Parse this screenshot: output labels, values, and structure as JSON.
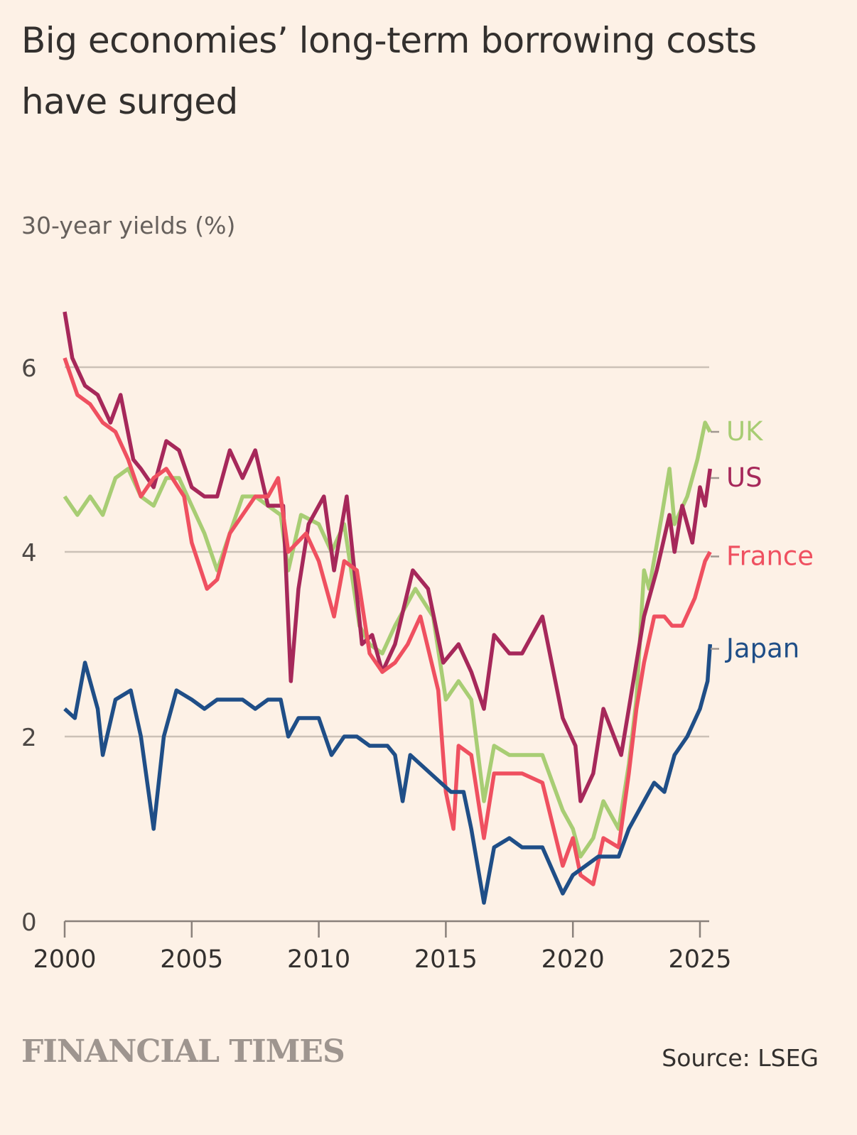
{
  "chart_data": {
    "type": "line",
    "title": "Big economies’ long-term borrowing costs have surged",
    "subtitle": "30-year yields (%)",
    "xlim": [
      2000,
      2025.5
    ],
    "ylim": [
      0,
      6.8
    ],
    "x_ticks": [
      2000,
      2005,
      2010,
      2015,
      2020,
      2025
    ],
    "x_tick_labels": [
      "2000",
      "2005",
      "2010",
      "2015",
      "2020",
      "2025"
    ],
    "y_ticks": [
      0,
      2,
      4,
      6
    ],
    "y_tick_labels": [
      "0",
      "2",
      "4",
      "6"
    ],
    "grid": true,
    "legend": "direct labels at line ends (right)",
    "series": [
      {
        "name": "UK",
        "color": "#a8cd74",
        "points": [
          [
            2000,
            4.6
          ],
          [
            2000.5,
            4.4
          ],
          [
            2001,
            4.6
          ],
          [
            2001.5,
            4.4
          ],
          [
            2002,
            4.8
          ],
          [
            2002.5,
            4.9
          ],
          [
            2003,
            4.6
          ],
          [
            2003.5,
            4.5
          ],
          [
            2004,
            4.8
          ],
          [
            2004.5,
            4.8
          ],
          [
            2005,
            4.5
          ],
          [
            2005.5,
            4.2
          ],
          [
            2006,
            3.8
          ],
          [
            2006.5,
            4.2
          ],
          [
            2007,
            4.6
          ],
          [
            2007.5,
            4.6
          ],
          [
            2008,
            4.5
          ],
          [
            2008.5,
            4.4
          ],
          [
            2008.8,
            3.8
          ],
          [
            2009.3,
            4.4
          ],
          [
            2010,
            4.3
          ],
          [
            2010.5,
            4.0
          ],
          [
            2011,
            4.3
          ],
          [
            2011.6,
            3.2
          ],
          [
            2012,
            3.0
          ],
          [
            2012.5,
            2.9
          ],
          [
            2013,
            3.2
          ],
          [
            2013.8,
            3.6
          ],
          [
            2014.5,
            3.3
          ],
          [
            2015,
            2.4
          ],
          [
            2015.5,
            2.6
          ],
          [
            2016,
            2.4
          ],
          [
            2016.5,
            1.3
          ],
          [
            2016.9,
            1.9
          ],
          [
            2017.5,
            1.8
          ],
          [
            2018,
            1.8
          ],
          [
            2018.8,
            1.8
          ],
          [
            2019.6,
            1.2
          ],
          [
            2020,
            1.0
          ],
          [
            2020.3,
            0.7
          ],
          [
            2020.8,
            0.9
          ],
          [
            2021.2,
            1.3
          ],
          [
            2021.8,
            1.0
          ],
          [
            2022.2,
            1.7
          ],
          [
            2022.5,
            2.4
          ],
          [
            2022.8,
            3.8
          ],
          [
            2023,
            3.6
          ],
          [
            2023.5,
            4.4
          ],
          [
            2023.8,
            4.9
          ],
          [
            2024,
            4.3
          ],
          [
            2024.5,
            4.6
          ],
          [
            2024.9,
            5.0
          ],
          [
            2025.2,
            5.4
          ],
          [
            2025.4,
            5.3
          ]
        ]
      },
      {
        "name": "US",
        "color": "#a6285a",
        "points": [
          [
            2000,
            6.6
          ],
          [
            2000.3,
            6.1
          ],
          [
            2000.8,
            5.8
          ],
          [
            2001.3,
            5.7
          ],
          [
            2001.8,
            5.4
          ],
          [
            2002.2,
            5.7
          ],
          [
            2002.7,
            5.0
          ],
          [
            2003,
            4.9
          ],
          [
            2003.5,
            4.7
          ],
          [
            2004,
            5.2
          ],
          [
            2004.5,
            5.1
          ],
          [
            2005,
            4.7
          ],
          [
            2005.5,
            4.6
          ],
          [
            2006,
            4.6
          ],
          [
            2006.5,
            5.1
          ],
          [
            2007,
            4.8
          ],
          [
            2007.5,
            5.1
          ],
          [
            2008,
            4.5
          ],
          [
            2008.6,
            4.5
          ],
          [
            2008.9,
            2.6
          ],
          [
            2009.2,
            3.6
          ],
          [
            2009.6,
            4.3
          ],
          [
            2010.2,
            4.6
          ],
          [
            2010.6,
            3.8
          ],
          [
            2011.1,
            4.6
          ],
          [
            2011.7,
            3.0
          ],
          [
            2012.1,
            3.1
          ],
          [
            2012.5,
            2.7
          ],
          [
            2013,
            3.0
          ],
          [
            2013.7,
            3.8
          ],
          [
            2014.3,
            3.6
          ],
          [
            2014.9,
            2.8
          ],
          [
            2015.5,
            3.0
          ],
          [
            2016,
            2.7
          ],
          [
            2016.5,
            2.3
          ],
          [
            2016.9,
            3.1
          ],
          [
            2017.5,
            2.9
          ],
          [
            2018,
            2.9
          ],
          [
            2018.8,
            3.3
          ],
          [
            2019.6,
            2.2
          ],
          [
            2020.1,
            1.9
          ],
          [
            2020.3,
            1.3
          ],
          [
            2020.8,
            1.6
          ],
          [
            2021.2,
            2.3
          ],
          [
            2021.9,
            1.8
          ],
          [
            2022.2,
            2.3
          ],
          [
            2022.8,
            3.3
          ],
          [
            2023.3,
            3.8
          ],
          [
            2023.8,
            4.4
          ],
          [
            2024,
            4.0
          ],
          [
            2024.3,
            4.5
          ],
          [
            2024.7,
            4.1
          ],
          [
            2025,
            4.7
          ],
          [
            2025.2,
            4.5
          ],
          [
            2025.4,
            4.9
          ]
        ]
      },
      {
        "name": "France",
        "color": "#ef5060",
        "points": [
          [
            2000,
            6.1
          ],
          [
            2000.5,
            5.7
          ],
          [
            2001,
            5.6
          ],
          [
            2001.5,
            5.4
          ],
          [
            2002,
            5.3
          ],
          [
            2002.5,
            5.0
          ],
          [
            2003,
            4.6
          ],
          [
            2003.5,
            4.8
          ],
          [
            2004,
            4.9
          ],
          [
            2004.7,
            4.6
          ],
          [
            2005,
            4.1
          ],
          [
            2005.6,
            3.6
          ],
          [
            2006,
            3.7
          ],
          [
            2006.5,
            4.2
          ],
          [
            2007,
            4.4
          ],
          [
            2007.5,
            4.6
          ],
          [
            2008,
            4.6
          ],
          [
            2008.4,
            4.8
          ],
          [
            2008.8,
            4.0
          ],
          [
            2009.5,
            4.2
          ],
          [
            2010,
            3.9
          ],
          [
            2010.6,
            3.3
          ],
          [
            2011,
            3.9
          ],
          [
            2011.5,
            3.8
          ],
          [
            2012,
            2.9
          ],
          [
            2012.5,
            2.7
          ],
          [
            2013,
            2.8
          ],
          [
            2013.5,
            3.0
          ],
          [
            2014,
            3.3
          ],
          [
            2014.7,
            2.5
          ],
          [
            2015,
            1.4
          ],
          [
            2015.3,
            1.0
          ],
          [
            2015.5,
            1.9
          ],
          [
            2016,
            1.8
          ],
          [
            2016.5,
            0.9
          ],
          [
            2016.9,
            1.6
          ],
          [
            2017.5,
            1.6
          ],
          [
            2018,
            1.6
          ],
          [
            2018.8,
            1.5
          ],
          [
            2019.6,
            0.6
          ],
          [
            2020,
            0.9
          ],
          [
            2020.3,
            0.5
          ],
          [
            2020.8,
            0.4
          ],
          [
            2021.2,
            0.9
          ],
          [
            2021.8,
            0.8
          ],
          [
            2022.2,
            1.6
          ],
          [
            2022.5,
            2.3
          ],
          [
            2022.8,
            2.8
          ],
          [
            2023.2,
            3.3
          ],
          [
            2023.6,
            3.3
          ],
          [
            2023.9,
            3.2
          ],
          [
            2024.3,
            3.2
          ],
          [
            2024.8,
            3.5
          ],
          [
            2025.2,
            3.9
          ],
          [
            2025.4,
            4.0
          ]
        ]
      },
      {
        "name": "Japan",
        "color": "#1f4e87",
        "points": [
          [
            2000,
            2.3
          ],
          [
            2000.4,
            2.2
          ],
          [
            2000.8,
            2.8
          ],
          [
            2001.3,
            2.3
          ],
          [
            2001.5,
            1.8
          ],
          [
            2002,
            2.4
          ],
          [
            2002.6,
            2.5
          ],
          [
            2003,
            2.0
          ],
          [
            2003.5,
            1.0
          ],
          [
            2003.9,
            2.0
          ],
          [
            2004.4,
            2.5
          ],
          [
            2005,
            2.4
          ],
          [
            2005.5,
            2.3
          ],
          [
            2006,
            2.4
          ],
          [
            2006.5,
            2.4
          ],
          [
            2007,
            2.4
          ],
          [
            2007.5,
            2.3
          ],
          [
            2008,
            2.4
          ],
          [
            2008.5,
            2.4
          ],
          [
            2008.8,
            2.0
          ],
          [
            2009.2,
            2.2
          ],
          [
            2010,
            2.2
          ],
          [
            2010.5,
            1.8
          ],
          [
            2011,
            2.0
          ],
          [
            2011.5,
            2.0
          ],
          [
            2012,
            1.9
          ],
          [
            2012.7,
            1.9
          ],
          [
            2013,
            1.8
          ],
          [
            2013.3,
            1.3
          ],
          [
            2013.6,
            1.8
          ],
          [
            2014,
            1.7
          ],
          [
            2014.8,
            1.5
          ],
          [
            2015.2,
            1.4
          ],
          [
            2015.7,
            1.4
          ],
          [
            2016,
            1.0
          ],
          [
            2016.5,
            0.2
          ],
          [
            2016.9,
            0.8
          ],
          [
            2017.5,
            0.9
          ],
          [
            2018,
            0.8
          ],
          [
            2018.8,
            0.8
          ],
          [
            2019.6,
            0.3
          ],
          [
            2020,
            0.5
          ],
          [
            2020.5,
            0.6
          ],
          [
            2021,
            0.7
          ],
          [
            2021.8,
            0.7
          ],
          [
            2022.2,
            1.0
          ],
          [
            2022.8,
            1.3
          ],
          [
            2023.2,
            1.5
          ],
          [
            2023.6,
            1.4
          ],
          [
            2024,
            1.8
          ],
          [
            2024.5,
            2.0
          ],
          [
            2025,
            2.3
          ],
          [
            2025.3,
            2.6
          ],
          [
            2025.4,
            3.0
          ]
        ]
      }
    ],
    "labels": [
      {
        "series": "UK",
        "text": "UK",
        "value": 5.3
      },
      {
        "series": "US",
        "text": "US",
        "value": 4.8
      },
      {
        "series": "France",
        "text": "France",
        "value": 3.95
      },
      {
        "series": "Japan",
        "text": "Japan",
        "value": 2.95
      }
    ]
  },
  "footer": {
    "logo": "FINANCIAL TIMES",
    "source": "Source: LSEG"
  },
  "colors": {
    "background": "#fdf1e6",
    "grid": "#ccc1b7",
    "text": "#33302e"
  }
}
